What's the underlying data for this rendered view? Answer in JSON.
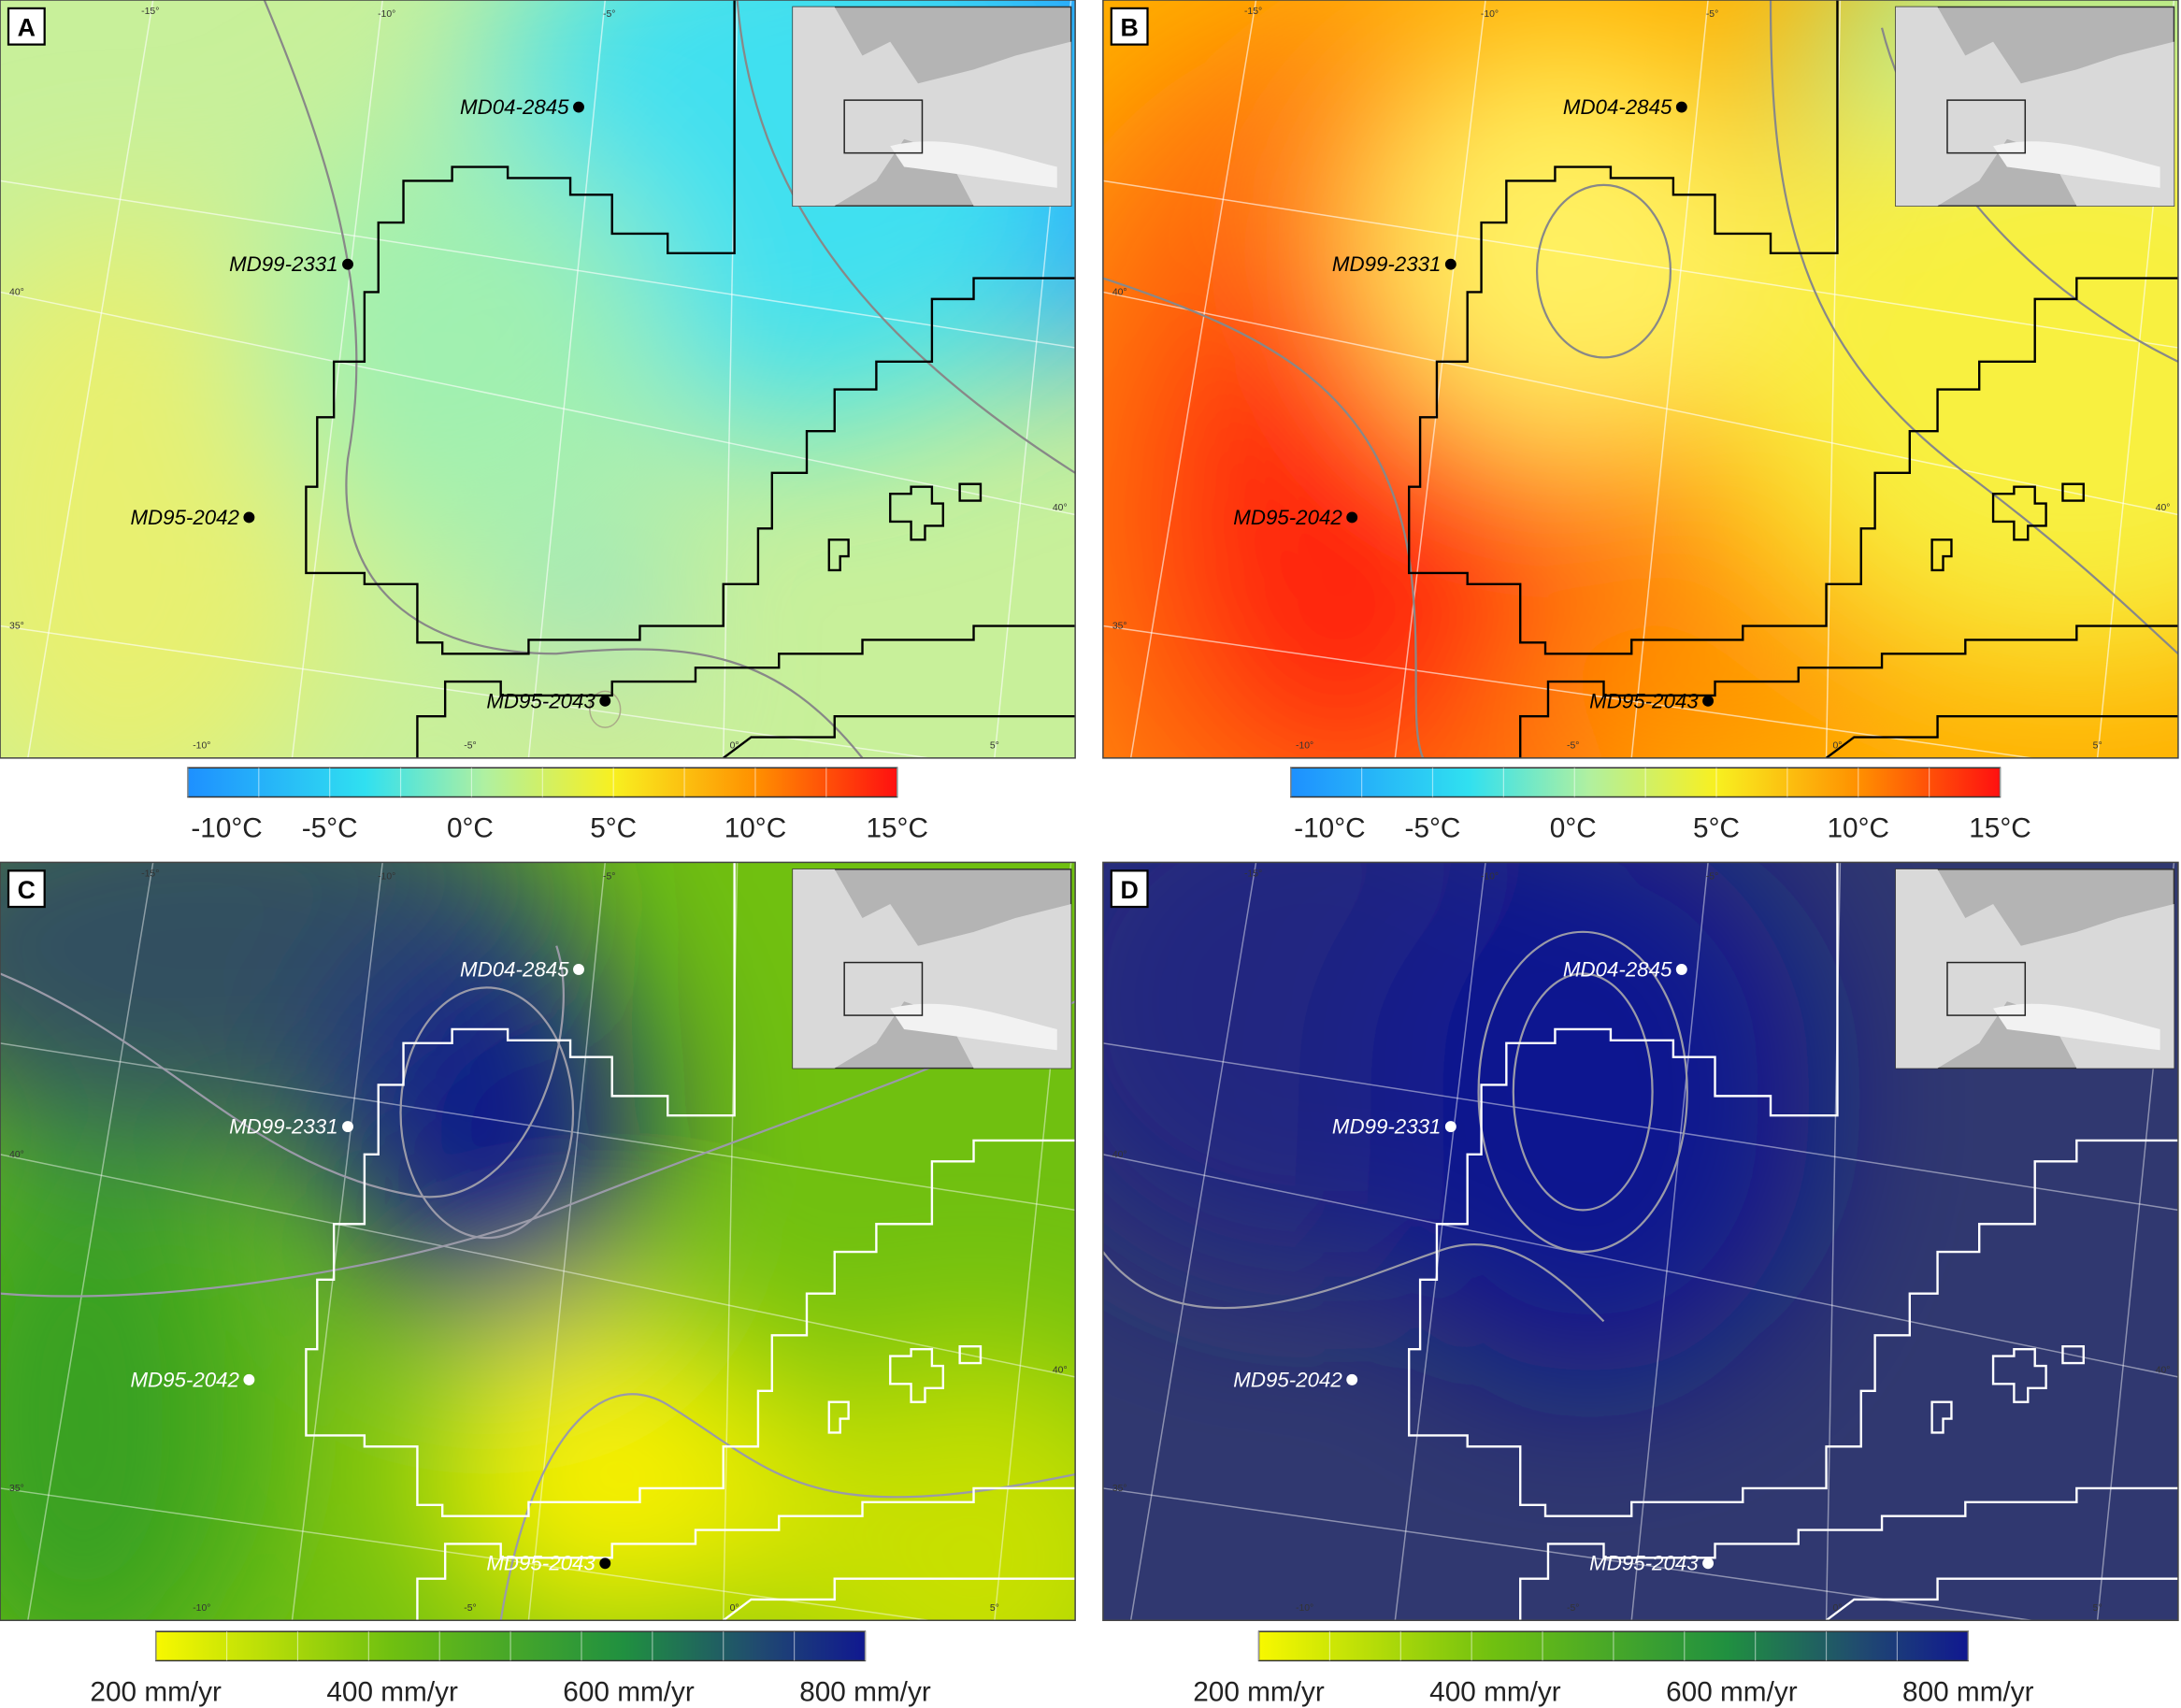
{
  "panels": [
    {
      "letter": "A",
      "sites": [
        "MD04-2845",
        "MD99-2331",
        "MD95-2042",
        "MD95-2043"
      ],
      "graticule": [
        "-15°",
        "-10°",
        "-5°",
        "40°",
        "35°",
        "-10°",
        "-5°",
        "0°",
        "5°",
        "40°"
      ],
      "colorbar": [
        "-10°C",
        "-5°C",
        "0°C",
        "5°C",
        "10°C",
        "15°C"
      ]
    },
    {
      "letter": "B",
      "sites": [
        "MD04-2845",
        "MD99-2331",
        "MD95-2042",
        "MD95-2043"
      ],
      "graticule": [
        "-15°",
        "-10°",
        "-5°",
        "40°",
        "35°",
        "-10°",
        "-5°",
        "0°",
        "5°",
        "40°"
      ],
      "colorbar": [
        "-10°C",
        "-5°C",
        "0°C",
        "5°C",
        "10°C",
        "15°C"
      ]
    },
    {
      "letter": "C",
      "sites": [
        "MD04-2845",
        "MD99-2331",
        "MD95-2042",
        "MD95-2043"
      ],
      "graticule": [
        "-15°",
        "-10°",
        "-5°",
        "40°",
        "35°",
        "-10°",
        "-5°",
        "0°",
        "5°",
        "40°"
      ],
      "colorbar": [
        "200 mm/yr",
        "400 mm/yr",
        "600 mm/yr",
        "800 mm/yr"
      ]
    },
    {
      "letter": "D",
      "sites": [
        "MD04-2845",
        "MD99-2331",
        "MD95-2042",
        "MD95-2043"
      ],
      "graticule": [
        "-15°",
        "-10°",
        "-5°",
        "40°",
        "35°",
        "-10°",
        "-5°",
        "0°",
        "5°",
        "40°"
      ],
      "colorbar": [
        "200 mm/yr",
        "400 mm/yr",
        "600 mm/yr",
        "800 mm/yr"
      ]
    }
  ]
}
